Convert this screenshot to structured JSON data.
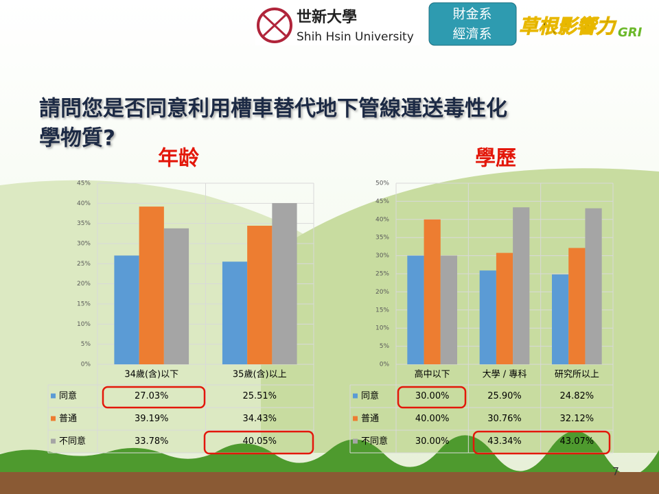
{
  "header": {
    "university_cn": "世新大學",
    "university_en": "Shih Hsin University",
    "dept_1": "財金系",
    "dept_2": "經濟系",
    "brand": "草根影響力",
    "brand_tag": "GRI"
  },
  "title_lines": [
    "請問您是否同意利用槽車替代地下管線運送毒性化",
    "學物質?"
  ],
  "page_number": "7",
  "chart_data": [
    {
      "type": "bar",
      "title": "年龄",
      "categories": [
        "34歲(含)以下",
        "35歲(含)以上"
      ],
      "series": [
        {
          "name": "同意",
          "color": "#5b9bd5",
          "values": [
            27.03,
            25.51
          ],
          "value_labels": [
            "27.03%",
            "25.51%"
          ]
        },
        {
          "name": "普通",
          "color": "#ed7d31",
          "values": [
            39.19,
            34.43
          ],
          "value_labels": [
            "39.19%",
            "34.43%"
          ]
        },
        {
          "name": "不同意",
          "color": "#a5a5a5",
          "values": [
            33.78,
            40.05
          ],
          "value_labels": [
            "33.78%",
            "40.05%"
          ]
        }
      ],
      "ylim": [
        0,
        45
      ],
      "yticks": [
        {
          "value": 0,
          "label": "0%"
        },
        {
          "value": 5,
          "label": "5%"
        },
        {
          "value": 10,
          "label": "10%"
        },
        {
          "value": 15,
          "label": "15%"
        },
        {
          "value": 20,
          "label": "20%"
        },
        {
          "value": 25,
          "label": "25%"
        },
        {
          "value": 30,
          "label": "30%"
        },
        {
          "value": 35,
          "label": "35%"
        },
        {
          "value": 40,
          "label": "40%"
        },
        {
          "value": 45,
          "label": "45%"
        }
      ],
      "grid": true
    },
    {
      "type": "bar",
      "title": "學歷",
      "categories": [
        "高中以下",
        "大學 / 專科",
        "研究所以上"
      ],
      "series": [
        {
          "name": "同意",
          "color": "#5b9bd5",
          "values": [
            30.0,
            25.9,
            24.82
          ],
          "value_labels": [
            "30.00%",
            "25.90%",
            "24.82%"
          ]
        },
        {
          "name": "普通",
          "color": "#ed7d31",
          "values": [
            40.0,
            30.76,
            32.12
          ],
          "value_labels": [
            "40.00%",
            "30.76%",
            "32.12%"
          ]
        },
        {
          "name": "不同意",
          "color": "#a5a5a5",
          "values": [
            30.0,
            43.34,
            43.07
          ],
          "value_labels": [
            "30.00%",
            "43.34%",
            "43.07%"
          ]
        }
      ],
      "ylim": [
        0,
        50
      ],
      "yticks": [
        {
          "value": 0,
          "label": "0%"
        },
        {
          "value": 5,
          "label": "5%"
        },
        {
          "value": 10,
          "label": "10%"
        },
        {
          "value": 15,
          "label": "15%"
        },
        {
          "value": 20,
          "label": "20%"
        },
        {
          "value": 25,
          "label": "25%"
        },
        {
          "value": 30,
          "label": "30%"
        },
        {
          "value": 35,
          "label": "35%"
        },
        {
          "value": 40,
          "label": "40%"
        },
        {
          "value": 45,
          "label": "45%"
        },
        {
          "value": 50,
          "label": "50%"
        }
      ],
      "grid": true
    }
  ]
}
